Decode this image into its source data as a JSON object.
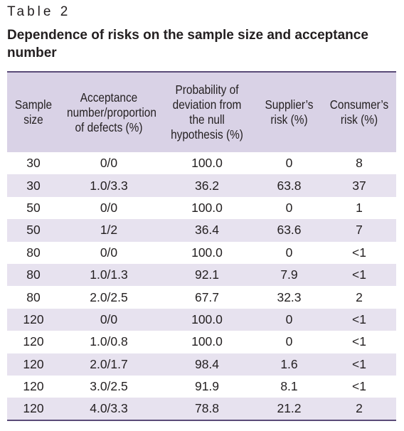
{
  "table_label": "Table 2",
  "table_title": "Dependence of risks on the sample size and acceptance number",
  "headers": [
    "Sample size",
    "Acceptance number/proportion of defects (%)",
    "Probability of deviation from the null hypothesis (%)",
    "Supplier’s risk (%)",
    "Consumer’s risk (%)"
  ],
  "rows": [
    [
      "30",
      "0/0",
      "100.0",
      "0",
      "8"
    ],
    [
      "30",
      "1.0/3.3",
      "36.2",
      "63.8",
      "37"
    ],
    [
      "50",
      "0/0",
      "100.0",
      "0",
      "1"
    ],
    [
      "50",
      "1/2",
      "36.4",
      "63.6",
      "7"
    ],
    [
      "80",
      "0/0",
      "100.0",
      "0",
      "<1"
    ],
    [
      "80",
      "1.0/1.3",
      "92.1",
      "7.9",
      "<1"
    ],
    [
      "80",
      "2.0/2.5",
      "67.7",
      "32.3",
      "2"
    ],
    [
      "120",
      "0/0",
      "100.0",
      "0",
      "<1"
    ],
    [
      "120",
      "1.0/0.8",
      "100.0",
      "0",
      "<1"
    ],
    [
      "120",
      "2.0/1.7",
      "98.4",
      "1.6",
      "<1"
    ],
    [
      "120",
      "3.0/2.5",
      "91.9",
      "8.1",
      "<1"
    ],
    [
      "120",
      "4.0/3.3",
      "78.8",
      "21.2",
      "2"
    ]
  ],
  "colors": {
    "header_bg": "#d9d2e6",
    "row_alt_bg": "#e7e2ef",
    "rule": "#5a4b78"
  }
}
